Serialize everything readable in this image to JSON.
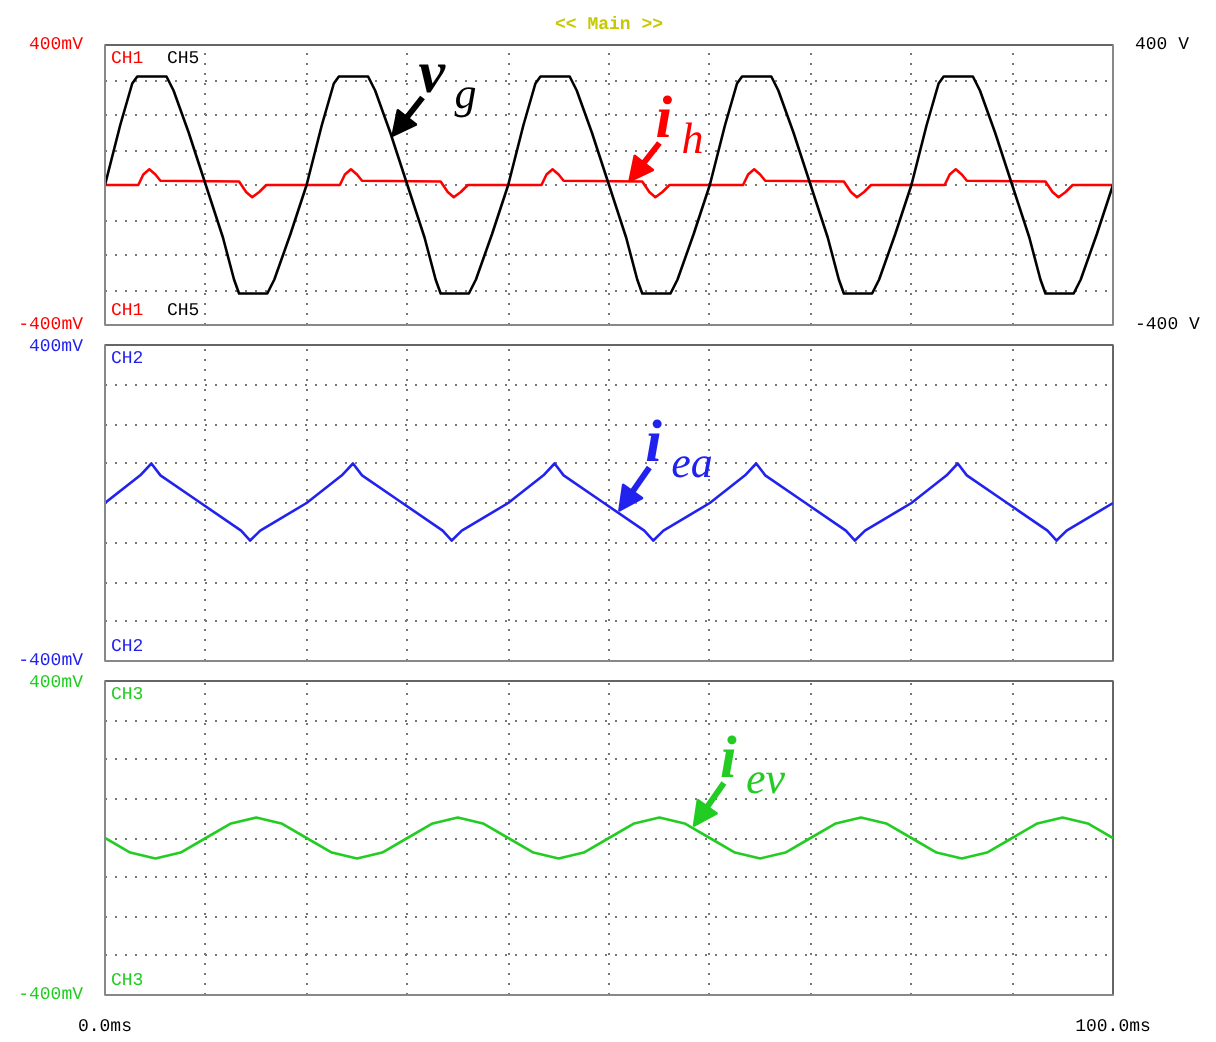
{
  "chart_data": [
    {
      "type": "line",
      "title": "<< Main >>",
      "xlim": [
        0,
        100
      ],
      "ylim": [
        -400,
        400
      ],
      "y2lim": [
        -400,
        400
      ],
      "grid": true,
      "tick_labels": "y",
      "xticks": [
        {
          "value": 0,
          "label": null
        },
        {
          "value": 10,
          "label": null
        },
        {
          "value": 20,
          "label": null
        },
        {
          "value": 30,
          "label": null
        },
        {
          "value": 40,
          "label": null
        },
        {
          "value": 50,
          "label": null
        },
        {
          "value": 60,
          "label": null
        },
        {
          "value": 70,
          "label": null
        },
        {
          "value": 80,
          "label": null
        },
        {
          "value": 90,
          "label": null
        },
        {
          "value": 100,
          "label": null
        }
      ],
      "yticks": [
        {
          "value": -400,
          "label": "-400mV"
        },
        {
          "value": -300,
          "label": null
        },
        {
          "value": -200,
          "label": null
        },
        {
          "value": -100,
          "label": null
        },
        {
          "value": 0,
          "label": null
        },
        {
          "value": 100,
          "label": null
        },
        {
          "value": 200,
          "label": null
        },
        {
          "value": 300,
          "label": null
        },
        {
          "value": 400,
          "label": "400mV"
        }
      ],
      "y2ticks": [
        {
          "value": -400,
          "label": "-400 V"
        },
        {
          "value": 400,
          "label": "400 V"
        }
      ],
      "series": [
        {
          "name": "CH1",
          "color": "#ff0000",
          "x": [
            0,
            3.3,
            3.8,
            4.4,
            5,
            5.5,
            13.3,
            14,
            14.6,
            15.3,
            16,
            20,
            23.3,
            23.8,
            24.4,
            25,
            25.5,
            33.3,
            34,
            34.6,
            35.3,
            36,
            40,
            43.3,
            43.8,
            44.4,
            45,
            45.5,
            53.3,
            54,
            54.6,
            55.3,
            56,
            60,
            63.3,
            63.8,
            64.4,
            65,
            65.5,
            73.3,
            74,
            74.6,
            75.3,
            76,
            80,
            83.3,
            83.8,
            84.4,
            85,
            85.5,
            93.3,
            94,
            94.6,
            95.3,
            96,
            100
          ],
          "values": [
            0,
            0,
            30,
            45,
            30,
            12,
            10,
            -20,
            -35,
            -20,
            0,
            0,
            0,
            30,
            45,
            30,
            12,
            10,
            -20,
            -35,
            -20,
            0,
            0,
            0,
            30,
            45,
            30,
            12,
            10,
            -20,
            -35,
            -20,
            0,
            0,
            0,
            30,
            45,
            30,
            12,
            10,
            -20,
            -35,
            -20,
            0,
            0,
            0,
            30,
            45,
            30,
            12,
            10,
            -20,
            -35,
            -20,
            0,
            0
          ]
        },
        {
          "name": "CH5",
          "color": "#000000",
          "axis": "y2",
          "x": [
            0,
            1.5,
            2.7,
            3.2,
            6.1,
            6.8,
            8.3,
            10,
            11.7,
            12.8,
            13.3,
            16.1,
            16.8,
            18.4,
            20,
            21.5,
            22.7,
            23.2,
            26.1,
            26.8,
            28.3,
            30,
            31.7,
            32.8,
            33.3,
            36.1,
            36.8,
            38.4,
            40,
            41.5,
            42.7,
            43.2,
            46.1,
            46.8,
            48.3,
            50,
            51.7,
            52.8,
            53.3,
            56.1,
            56.8,
            58.4,
            60,
            61.5,
            62.7,
            63.2,
            66.1,
            66.8,
            68.3,
            70,
            71.7,
            72.8,
            73.3,
            76.1,
            76.8,
            78.4,
            80,
            81.5,
            82.7,
            83.2,
            86.1,
            86.8,
            88.3,
            90,
            91.7,
            92.8,
            93.3,
            96.1,
            96.8,
            98.4,
            100
          ],
          "values": [
            0,
            170,
            290,
            310,
            310,
            270,
            150,
            0,
            -150,
            -270,
            -310,
            -310,
            -270,
            -140,
            0,
            170,
            290,
            310,
            310,
            270,
            150,
            0,
            -150,
            -270,
            -310,
            -310,
            -270,
            -140,
            0,
            170,
            290,
            310,
            310,
            270,
            150,
            0,
            -150,
            -270,
            -310,
            -310,
            -270,
            -140,
            0,
            170,
            290,
            310,
            310,
            270,
            150,
            0,
            -150,
            -270,
            -310,
            -310,
            -270,
            -140,
            0,
            170,
            290,
            310,
            310,
            270,
            150,
            0,
            -150,
            -270,
            -310,
            -310,
            -270,
            -140,
            0
          ]
        }
      ],
      "annotations": [
        {
          "text": "v$_{g}$",
          "x": 28.5,
          "y": 140
        },
        {
          "text": "i$_{h}$",
          "x": 52,
          "y": 10
        }
      ]
    },
    {
      "type": "line",
      "xlim": [
        0,
        100
      ],
      "ylim": [
        -400,
        400
      ],
      "grid": true,
      "tick_labels": "y",
      "xticks": [
        {
          "value": 0,
          "label": null
        },
        {
          "value": 10,
          "label": null
        },
        {
          "value": 20,
          "label": null
        },
        {
          "value": 30,
          "label": null
        },
        {
          "value": 40,
          "label": null
        },
        {
          "value": 50,
          "label": null
        },
        {
          "value": 60,
          "label": null
        },
        {
          "value": 70,
          "label": null
        },
        {
          "value": 80,
          "label": null
        },
        {
          "value": 90,
          "label": null
        },
        {
          "value": 100,
          "label": null
        }
      ],
      "yticks": [
        {
          "value": -400,
          "label": "-400mV"
        },
        {
          "value": -300,
          "label": null
        },
        {
          "value": -200,
          "label": null
        },
        {
          "value": -100,
          "label": null
        },
        {
          "value": 0,
          "label": null
        },
        {
          "value": 100,
          "label": null
        },
        {
          "value": 200,
          "label": null
        },
        {
          "value": 300,
          "label": null
        },
        {
          "value": 400,
          "label": "400mV"
        }
      ],
      "series": [
        {
          "name": "CH2",
          "color": "#2222ee",
          "x": [
            0,
            3.5,
            4.6,
            5.5,
            9.5,
            13.5,
            14.4,
            15.4,
            20,
            23.5,
            24.6,
            25.5,
            29.5,
            33.5,
            34.4,
            35.4,
            40,
            43.5,
            44.6,
            45.5,
            49.5,
            53.5,
            54.4,
            55.4,
            60,
            63.5,
            64.6,
            65.5,
            69.5,
            73.5,
            74.4,
            75.4,
            80,
            83.5,
            84.6,
            85.5,
            89.5,
            93.5,
            94.4,
            95.4,
            100
          ],
          "values": [
            0,
            70,
            100,
            70,
            0,
            -70,
            -95,
            -70,
            0,
            70,
            100,
            70,
            0,
            -70,
            -95,
            -70,
            0,
            70,
            100,
            70,
            0,
            -70,
            -95,
            -70,
            0,
            70,
            100,
            70,
            0,
            -70,
            -95,
            -70,
            0,
            70,
            100,
            70,
            0,
            -70,
            -95,
            -70,
            0
          ]
        }
      ],
      "annotations": [
        {
          "text": "i$_{ea}$",
          "x": 51,
          "y": -20
        }
      ]
    },
    {
      "type": "line",
      "xlim": [
        0,
        100
      ],
      "ylim": [
        -400,
        400
      ],
      "grid": true,
      "xticks": [
        {
          "value": 0,
          "label": "0.0ms"
        },
        {
          "value": 10,
          "label": null
        },
        {
          "value": 20,
          "label": null
        },
        {
          "value": 30,
          "label": null
        },
        {
          "value": 40,
          "label": null
        },
        {
          "value": 50,
          "label": null
        },
        {
          "value": 60,
          "label": null
        },
        {
          "value": 70,
          "label": null
        },
        {
          "value": 80,
          "label": null
        },
        {
          "value": 90,
          "label": null
        },
        {
          "value": 100,
          "label": "100.0ms"
        }
      ],
      "yticks": [
        {
          "value": -400,
          "label": "-400mV"
        },
        {
          "value": -300,
          "label": null
        },
        {
          "value": -200,
          "label": null
        },
        {
          "value": -100,
          "label": null
        },
        {
          "value": 0,
          "label": null
        },
        {
          "value": 100,
          "label": null
        },
        {
          "value": 200,
          "label": null
        },
        {
          "value": 300,
          "label": null
        },
        {
          "value": 400,
          "label": "400mV"
        }
      ],
      "series": [
        {
          "name": "CH3",
          "color": "#22cc22",
          "x": [
            0,
            2.5,
            5,
            7.5,
            10,
            12.5,
            15,
            17.5,
            20,
            22.5,
            25,
            27.5,
            30,
            32.5,
            35,
            37.5,
            40,
            42.5,
            45,
            47.5,
            50,
            52.5,
            55,
            57.5,
            60,
            62.5,
            65,
            67.5,
            70,
            72.5,
            75,
            77.5,
            80,
            82.5,
            85,
            87.5,
            90,
            92.5,
            95,
            97.5,
            100
          ],
          "values": [
            0,
            -37,
            -52,
            -37,
            0,
            37,
            52,
            37,
            0,
            -37,
            -52,
            -37,
            0,
            37,
            52,
            37,
            0,
            -37,
            -52,
            -37,
            0,
            37,
            52,
            37,
            0,
            -37,
            -52,
            -37,
            0,
            37,
            52,
            37,
            0,
            -37,
            -52,
            -37,
            0,
            37,
            52,
            37,
            0
          ]
        }
      ],
      "annotations": [
        {
          "text": "i$_{ev}$",
          "x": 58.4,
          "y": 30
        }
      ]
    }
  ]
}
